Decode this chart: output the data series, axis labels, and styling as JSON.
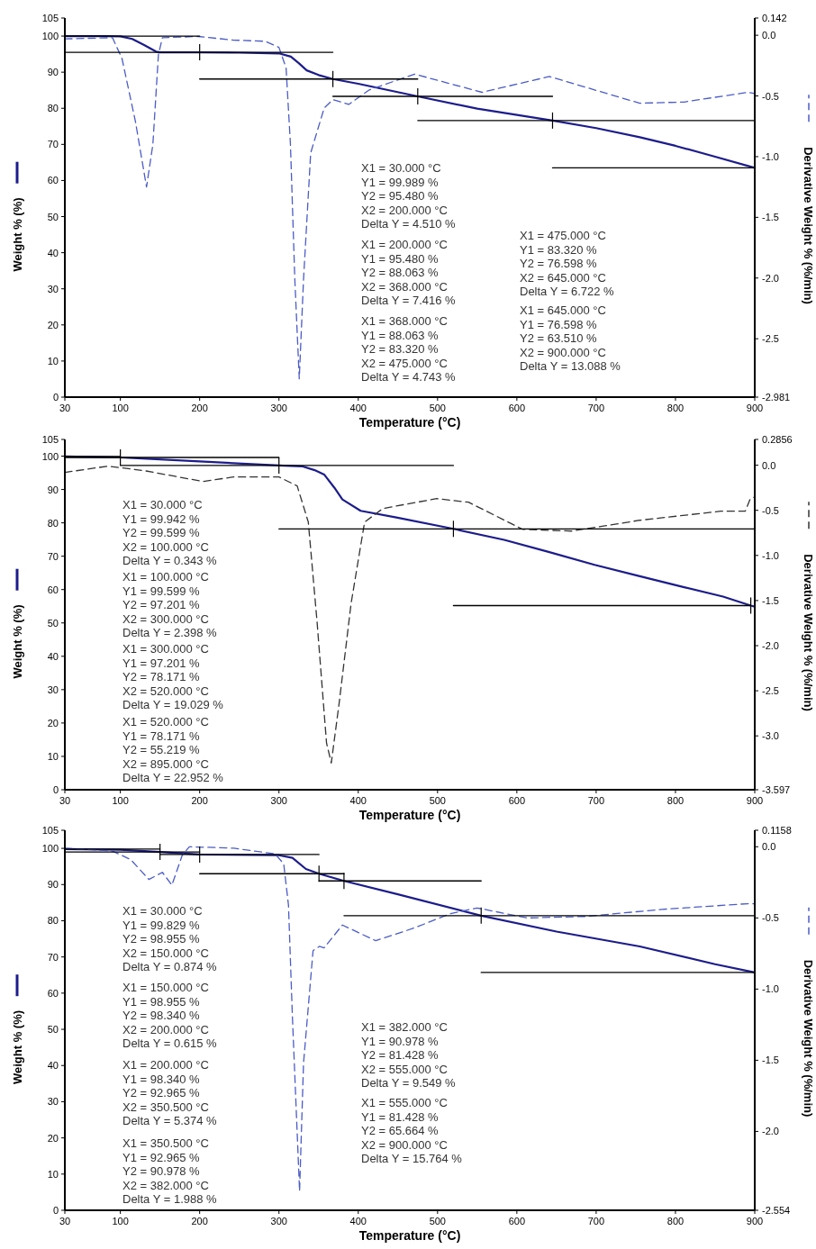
{
  "chart_data": [
    {
      "type": "line",
      "xlabel": "Temperature (°C)",
      "ylabel": "Weight % (%)",
      "y2label": "Derivative Weight % (%/min)",
      "xlim": [
        30,
        900
      ],
      "xticks": [
        30,
        100,
        200,
        300,
        400,
        500,
        600,
        700,
        800,
        900
      ],
      "ylim": [
        0,
        105
      ],
      "yticks": [
        0,
        10,
        20,
        30,
        40,
        50,
        60,
        70,
        80,
        90,
        100,
        105
      ],
      "y2lim": [
        -2.981,
        0.142
      ],
      "y2ticks": [
        -2.981,
        -2.5,
        {
          "value": -2,
          "label": "-2.0"
        },
        -1.5,
        {
          "value": -1,
          "label": "-1.0"
        },
        -0.5,
        {
          "value": 0,
          "label": "0.0"
        },
        0.142
      ],
      "annotations": [
        "X1 = 30.000 °C\nY1 = 99.989 %\nY2 = 95.480 %\nX2 = 200.000 °C\nDelta Y = 4.510 %",
        "X1 = 200.000 °C\nY1 = 95.480 %\nY2 = 88.063 %\nX2 = 368.000 °C\nDelta Y = 7.416 %",
        "X1 = 368.000 °C\nY1 = 88.063 %\nY2 = 83.320 %\nX2 = 475.000 °C\nDelta Y = 4.743 %",
        "X1 = 475.000 °C\nY1 = 83.320 %\nY2 = 76.598 %\nX2 = 645.000 °C\nDelta Y = 6.722 %",
        "X1 = 645.000 °C\nY1 = 76.598 %\nY2 = 63.510 %\nX2 = 900.000 °C\nDelta Y = 13.088 %"
      ],
      "series": [
        {
          "color": "#1c1c8c",
          "x": [
            30,
            80,
            100,
            115,
            130,
            145,
            150,
            200,
            250,
            300,
            315,
            325,
            335,
            350,
            368,
            400,
            475,
            550,
            645,
            700,
            755,
            800,
            850,
            900
          ],
          "values": [
            100,
            100,
            99.9,
            99.2,
            97.5,
            95.7,
            95.5,
            95.5,
            95.4,
            95.2,
            94.3,
            92.5,
            90.5,
            89.2,
            88.1,
            86.8,
            83.3,
            79.9,
            76.6,
            74.5,
            72,
            69.6,
            66.6,
            63.5
          ]
        },
        {
          "color": "#4b5cc6",
          "axis": "y2",
          "line_style": "dashed",
          "x": [
            30,
            90,
            102,
            119,
            133,
            141,
            148,
            153,
            198,
            243,
            283,
            300,
            309,
            314.5,
            320,
            325.6,
            331,
            340,
            357,
            368,
            388,
            414,
            471,
            556,
            641,
            755,
            811,
            891,
            900
          ],
          "values": [
            -0.03,
            -0.02,
            -0.19,
            -0.71,
            -1.25,
            -0.9,
            -0.16,
            -0.02,
            -0.01,
            -0.04,
            -0.05,
            -0.1,
            -0.27,
            -0.9,
            -2.01,
            -2.83,
            -2.01,
            -0.97,
            -0.6,
            -0.53,
            -0.57,
            -0.45,
            -0.32,
            -0.47,
            -0.34,
            -0.56,
            -0.55,
            -0.47,
            -0.48
          ]
        },
        {
          "color": "#000000",
          "x": [
            30,
            200
          ],
          "values": [
            100,
            100
          ]
        },
        {
          "color": "#000000",
          "x": [
            30,
            368
          ],
          "values": [
            95.5,
            95.5
          ]
        },
        {
          "color": "#000000",
          "x": [
            200,
            475
          ],
          "values": [
            88.1,
            88.1
          ]
        },
        {
          "color": "#000000",
          "x": [
            368,
            645
          ],
          "values": [
            83.3,
            83.3
          ]
        },
        {
          "color": "#000000",
          "x": [
            475,
            900
          ],
          "values": [
            76.6,
            76.6
          ]
        },
        {
          "color": "#000000",
          "x": [
            645,
            900
          ],
          "values": [
            63.5,
            63.5
          ]
        }
      ]
    },
    {
      "type": "line",
      "xlabel": "Temperature (°C)",
      "ylabel": "Weight % (%)",
      "y2label": "Derivative Weight % (%/min)",
      "xlim": [
        30,
        900
      ],
      "xticks": [
        30,
        100,
        200,
        300,
        400,
        500,
        600,
        700,
        800,
        900
      ],
      "ylim": [
        0,
        105
      ],
      "yticks": [
        0,
        10,
        20,
        30,
        40,
        50,
        60,
        70,
        80,
        90,
        100,
        105
      ],
      "y2lim": [
        -3.597,
        0.2856
      ],
      "y2ticks": [
        -3.597,
        {
          "value": -3,
          "label": "-3.0"
        },
        -2.5,
        {
          "value": -2,
          "label": "-2.0"
        },
        -1.5,
        {
          "value": -1,
          "label": "-1.0"
        },
        -0.5,
        {
          "value": 0,
          "label": "0.0"
        },
        0.2856
      ],
      "annotations": [
        "X1 = 30.000 °C\nY1 = 99.942 %\nY2 = 99.599 %\nX2 = 100.000 °C\nDelta Y = 0.343 %",
        "X1 = 100.000 °C\nY1 = 99.599 %\nY2 = 97.201 %\nX2 = 300.000 °C\nDelta Y = 2.398 %",
        "X1 = 300.000 °C\nY1 = 97.201 %\nY2 = 78.171 %\nX2 = 520.000 °C\nDelta Y = 19.029 %",
        "X1 = 520.000 °C\nY1 = 78.171 %\nY2 = 55.219 %\nX2 = 895.000 °C\nDelta Y = 22.952 %"
      ],
      "series": [
        {
          "color": "#1c1c8c",
          "x": [
            30,
            100,
            200,
            300,
            330,
            345,
            357,
            370,
            380,
            403,
            448,
            520,
            584,
            640,
            698,
            755,
            811,
            860,
            895,
            900
          ],
          "values": [
            99.9,
            99.6,
            98.4,
            97.2,
            96.9,
            95.8,
            94.5,
            90.5,
            87,
            83.6,
            81.6,
            78.2,
            74.9,
            71.3,
            67.4,
            64,
            60.7,
            57.9,
            55.2,
            54.9
          ]
        },
        {
          "color": "#333333",
          "axis": "y2",
          "line_style": "dashed",
          "x": [
            30,
            84.5,
            130,
            204,
            243,
            300,
            323,
            337,
            348,
            360,
            366,
            376,
            391,
            408,
            431,
            499,
            539,
            607,
            669,
            755,
            857,
            888,
            894,
            900
          ],
          "values": [
            -0.08,
            -0.01,
            -0.06,
            -0.18,
            -0.13,
            -0.13,
            -0.23,
            -0.63,
            -1.73,
            -3.08,
            -3.3,
            -2.63,
            -1.53,
            -0.63,
            -0.48,
            -0.37,
            -0.41,
            -0.71,
            -0.73,
            -0.61,
            -0.51,
            -0.51,
            -0.38,
            -0.35
          ]
        },
        {
          "color": "#000000",
          "x": [
            30,
            100
          ],
          "values": [
            99.9,
            99.9
          ]
        },
        {
          "color": "#000000",
          "x": [
            30,
            300
          ],
          "values": [
            99.6,
            99.6
          ]
        },
        {
          "color": "#000000",
          "x": [
            100,
            520
          ],
          "values": [
            97.2,
            97.2
          ]
        },
        {
          "color": "#000000",
          "x": [
            300,
            900
          ],
          "values": [
            78.2,
            78.2
          ]
        },
        {
          "color": "#000000",
          "x": [
            520,
            895
          ],
          "values": [
            55.2,
            55.2
          ]
        }
      ]
    },
    {
      "type": "line",
      "xlabel": "Temperature (°C)",
      "ylabel": "Weight % (%)",
      "y2label": "Derivative Weight % (%/min)",
      "xlim": [
        30,
        900
      ],
      "xticks": [
        30,
        100,
        200,
        300,
        400,
        500,
        600,
        700,
        800,
        900
      ],
      "ylim": [
        0,
        105
      ],
      "yticks": [
        0,
        10,
        20,
        30,
        40,
        50,
        60,
        70,
        80,
        90,
        100,
        105
      ],
      "y2lim": [
        -2.554,
        0.1158
      ],
      "y2ticks": [
        -2.554,
        {
          "value": -2,
          "label": "-2.0"
        },
        -1.5,
        {
          "value": -1,
          "label": "-1.0"
        },
        -0.5,
        {
          "value": 0,
          "label": "0.0"
        },
        0.1158
      ],
      "annotations": [
        "X1 = 30.000 °C\nY1 = 99.829 %\nY2 = 98.955 %\nX2 = 150.000 °C\nDelta Y = 0.874 %",
        "X1 = 150.000 °C\nY1 = 98.955 %\nY2 = 98.340 %\nX2 = 200.000 °C\nDelta Y = 0.615 %",
        "X1 = 200.000 °C\nY1 = 98.340 %\nY2 = 92.965 %\nX2 = 350.500 °C\nDelta Y = 5.374 %",
        "X1 = 350.500 °C\nY1 = 92.965 %\nY2 = 90.978 %\nX2 = 382.000 °C\nDelta Y = 1.988 %",
        "X1 = 382.000 °C\nY1 = 90.978 %\nY2 = 81.428 %\nX2 = 555.000 °C\nDelta Y = 9.549 %",
        "X1 = 555.000 °C\nY1 = 81.428 %\nY2 = 65.664 %\nX2 = 900.000 °C\nDelta Y = 15.764 %"
      ],
      "series": [
        {
          "color": "#1c1c8c",
          "x": [
            30,
            100,
            150,
            200,
            300,
            317,
            334,
            350.5,
            382,
            450,
            555,
            650,
            755,
            850,
            900
          ],
          "values": [
            99.8,
            99.6,
            99,
            98.3,
            98.1,
            97.4,
            94.3,
            93,
            91,
            87.3,
            81.4,
            77,
            72.9,
            68,
            65.7
          ]
        },
        {
          "color": "#4b5cc6",
          "axis": "y2",
          "line_style": "dashed",
          "x": [
            30,
            90,
            113,
            136,
            153,
            165,
            178,
            187,
            243,
            295,
            306,
            312,
            317,
            326,
            331,
            343,
            351,
            357,
            380,
            422,
            471,
            516,
            550,
            613,
            686,
            783,
            891,
            900
          ],
          "values": [
            -0.01,
            -0.03,
            -0.09,
            -0.23,
            -0.18,
            -0.27,
            -0.06,
            0,
            -0.01,
            -0.05,
            -0.12,
            -0.41,
            -1.2,
            -2.42,
            -1.52,
            -0.73,
            -0.7,
            -0.71,
            -0.55,
            -0.66,
            -0.57,
            -0.47,
            -0.43,
            -0.5,
            -0.49,
            -0.44,
            -0.4,
            -0.4
          ]
        },
        {
          "color": "#000000",
          "x": [
            30,
            150
          ],
          "values": [
            99.8,
            99.8
          ]
        },
        {
          "color": "#000000",
          "x": [
            30,
            200
          ],
          "values": [
            99,
            99
          ]
        },
        {
          "color": "#000000",
          "x": [
            150,
            350.5
          ],
          "values": [
            98.3,
            98.3
          ]
        },
        {
          "color": "#000000",
          "x": [
            200,
            382
          ],
          "values": [
            93,
            93
          ]
        },
        {
          "color": "#000000",
          "x": [
            350.5,
            555
          ],
          "values": [
            91,
            91
          ]
        },
        {
          "color": "#000000",
          "x": [
            382,
            900
          ],
          "values": [
            81.4,
            81.4
          ]
        },
        {
          "color": "#000000",
          "x": [
            555,
            900
          ],
          "values": [
            65.7,
            65.7
          ]
        }
      ]
    }
  ]
}
